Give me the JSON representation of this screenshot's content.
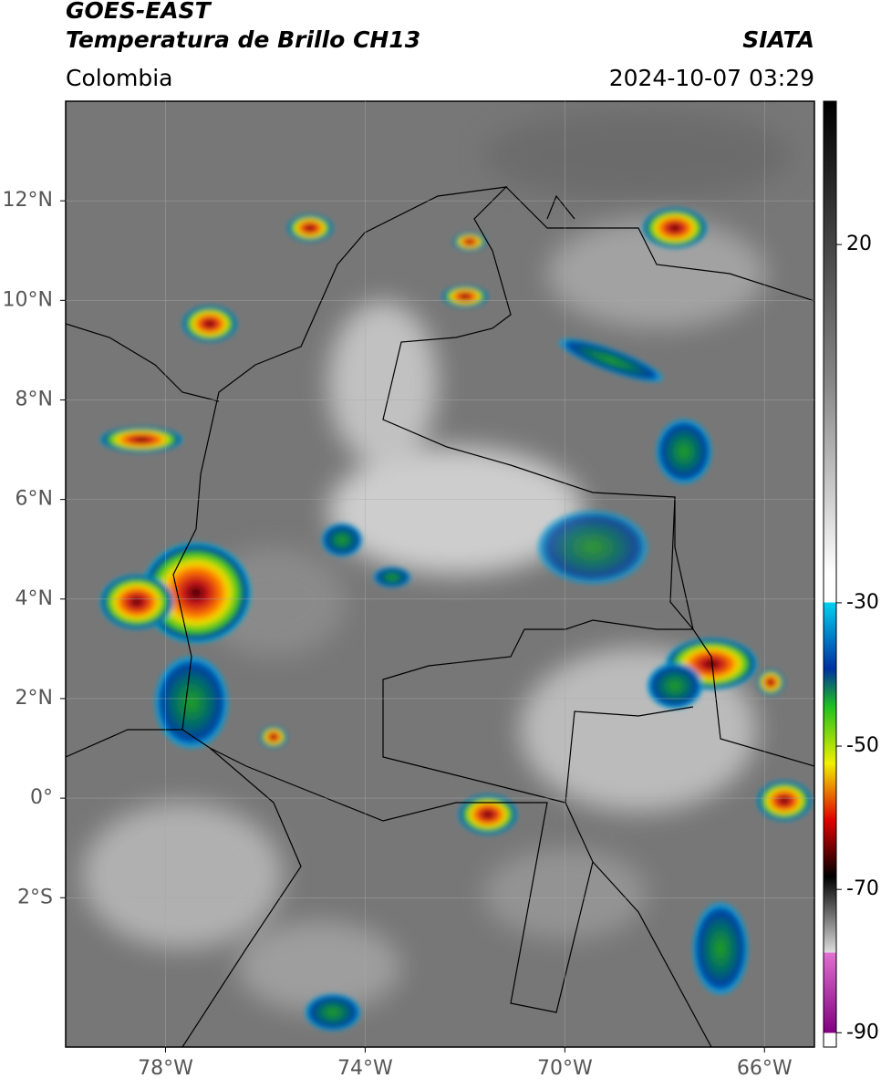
{
  "header": {
    "title": "GOES-EAST",
    "subtitle": "Temperatura de Brillo CH13",
    "region": "Colombia",
    "source": "SIATA",
    "datetime": "2024-10-07 03:29"
  },
  "map": {
    "xlim": [
      -80,
      -65
    ],
    "ylim": [
      -5,
      14
    ],
    "xticks": [
      {
        "value": -78,
        "label": "78°W"
      },
      {
        "value": -74,
        "label": "74°W"
      },
      {
        "value": -70,
        "label": "70°W"
      },
      {
        "value": -66,
        "label": "66°W"
      }
    ],
    "yticks": [
      {
        "value": 12,
        "label": "12°N"
      },
      {
        "value": 10,
        "label": "10°N"
      },
      {
        "value": 8,
        "label": "8°N"
      },
      {
        "value": 6,
        "label": "6°N"
      },
      {
        "value": 4,
        "label": "4°N"
      },
      {
        "value": 2,
        "label": "2°N"
      },
      {
        "value": 0,
        "label": "0°"
      },
      {
        "value": -2,
        "label": "2°S"
      }
    ],
    "grid": true
  },
  "colorbar": {
    "lim": [
      -92,
      40
    ],
    "ticks": [
      20,
      -30,
      -50,
      -70,
      -90
    ]
  }
}
